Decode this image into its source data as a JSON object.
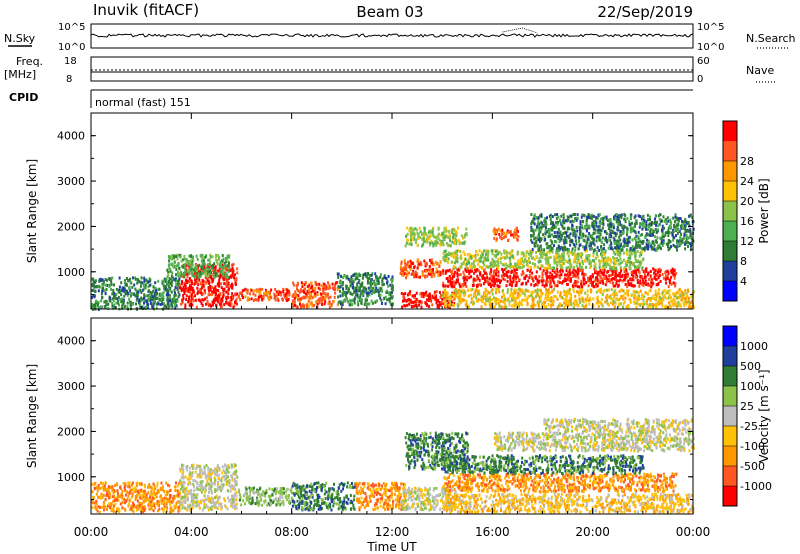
{
  "header": {
    "station": "Inuvik (fitACF)",
    "beam": "Beam 03",
    "date": "22/Sep/2019"
  },
  "sky_panel": {
    "left_label": "N.Sky",
    "right_label": "N.Search",
    "left_ticks": [
      "10^5",
      "10^0"
    ],
    "right_ticks": [
      "10^5",
      "10^0"
    ]
  },
  "freq_panel": {
    "left_label_1": "Freq.",
    "left_label_2": "[MHz]",
    "right_label": "Nave",
    "left_ticks": [
      "18",
      "8"
    ],
    "right_ticks": [
      "60",
      "0"
    ]
  },
  "cpid_panel": {
    "label": "CPID",
    "text": "normal (fast) 151"
  },
  "axes": {
    "ylabel": "Slant Range [km]",
    "xlabel": "Time UT",
    "y_ticks": [
      "1000",
      "2000",
      "3000",
      "4000"
    ],
    "x_ticks": [
      "00:00",
      "04:00",
      "08:00",
      "12:00",
      "16:00",
      "20:00",
      "00:00"
    ]
  },
  "colors": {
    "power": [
      "#0000ff",
      "#1f3f9f",
      "#2e7d32",
      "#4caf50",
      "#8bc34a",
      "#ffc107",
      "#ff9800",
      "#ff5722",
      "#ff0000"
    ],
    "velocity": [
      "#ff0000",
      "#ff5722",
      "#ff9800",
      "#ffc107",
      "#bdbdbd",
      "#8bc34a",
      "#2e7d32",
      "#1f3f9f",
      "#0000ff"
    ]
  },
  "chart_data": [
    {
      "type": "heatmap",
      "name": "Power",
      "colorbar_label": "Power [dB]",
      "colorbar_ticks": [
        "4",
        "8",
        "12",
        "16",
        "20",
        "24",
        "28"
      ],
      "xlim_hours": [
        0,
        24
      ],
      "ylim_km": [
        180,
        4500
      ],
      "regions": [
        {
          "t0": 0.0,
          "t1": 3.5,
          "r0": 200,
          "r1": 900,
          "level": 2
        },
        {
          "t0": 3.5,
          "t1": 5.8,
          "r0": 250,
          "r1": 1200,
          "level": 8
        },
        {
          "t0": 3.0,
          "t1": 5.5,
          "r0": 900,
          "r1": 1400,
          "level": 3
        },
        {
          "t0": 5.8,
          "t1": 8.0,
          "r0": 400,
          "r1": 650,
          "level": 7
        },
        {
          "t0": 8.0,
          "t1": 9.8,
          "r0": 250,
          "r1": 800,
          "level": 7
        },
        {
          "t0": 9.8,
          "t1": 12.0,
          "r0": 300,
          "r1": 1000,
          "level": 2
        },
        {
          "t0": 12.3,
          "t1": 14.5,
          "r0": 250,
          "r1": 600,
          "level": 8
        },
        {
          "t0": 12.3,
          "t1": 14.0,
          "r0": 900,
          "r1": 1300,
          "level": 7
        },
        {
          "t0": 12.5,
          "t1": 15.0,
          "r0": 1600,
          "r1": 2000,
          "level": 4
        },
        {
          "t0": 14.0,
          "t1": 23.3,
          "r0": 700,
          "r1": 1100,
          "level": 8
        },
        {
          "t0": 14.0,
          "t1": 22.0,
          "r0": 1100,
          "r1": 1500,
          "level": 4
        },
        {
          "t0": 16.0,
          "t1": 17.0,
          "r0": 1700,
          "r1": 2000,
          "level": 7
        },
        {
          "t0": 17.5,
          "t1": 24.0,
          "r0": 1500,
          "r1": 2300,
          "level": 2
        },
        {
          "t0": 14.0,
          "t1": 24.0,
          "r0": 250,
          "r1": 650,
          "level": 5
        }
      ]
    },
    {
      "type": "heatmap",
      "name": "Velocity",
      "colorbar_label": "Velocity [m s⁻¹]",
      "colorbar_ticks": [
        "-1000",
        "-500",
        "-100",
        "-25",
        "25",
        "100",
        "500",
        "1000"
      ],
      "xlim_hours": [
        0,
        24
      ],
      "ylim_km": [
        180,
        4500
      ],
      "regions": [
        {
          "t0": 0.0,
          "t1": 3.5,
          "r0": 250,
          "r1": 900,
          "level": 2
        },
        {
          "t0": 3.5,
          "t1": 5.8,
          "r0": 300,
          "r1": 1300,
          "level": 4
        },
        {
          "t0": 5.8,
          "t1": 8.0,
          "r0": 400,
          "r1": 800,
          "level": 5
        },
        {
          "t0": 8.0,
          "t1": 10.5,
          "r0": 300,
          "r1": 900,
          "level": 6
        },
        {
          "t0": 10.5,
          "t1": 12.5,
          "r0": 300,
          "r1": 900,
          "level": 2
        },
        {
          "t0": 12.3,
          "t1": 14.5,
          "r0": 300,
          "r1": 800,
          "level": 4
        },
        {
          "t0": 12.5,
          "t1": 15.0,
          "r0": 1200,
          "r1": 2000,
          "level": 6
        },
        {
          "t0": 14.0,
          "t1": 23.3,
          "r0": 700,
          "r1": 1100,
          "level": 2
        },
        {
          "t0": 14.0,
          "t1": 22.0,
          "r0": 1100,
          "r1": 1500,
          "level": 6
        },
        {
          "t0": 16.0,
          "t1": 18.0,
          "r0": 1600,
          "r1": 2000,
          "level": 4
        },
        {
          "t0": 18.0,
          "t1": 24.0,
          "r0": 1600,
          "r1": 2300,
          "level": 4
        },
        {
          "t0": 14.0,
          "t1": 24.0,
          "r0": 250,
          "r1": 650,
          "level": 3
        }
      ]
    }
  ]
}
